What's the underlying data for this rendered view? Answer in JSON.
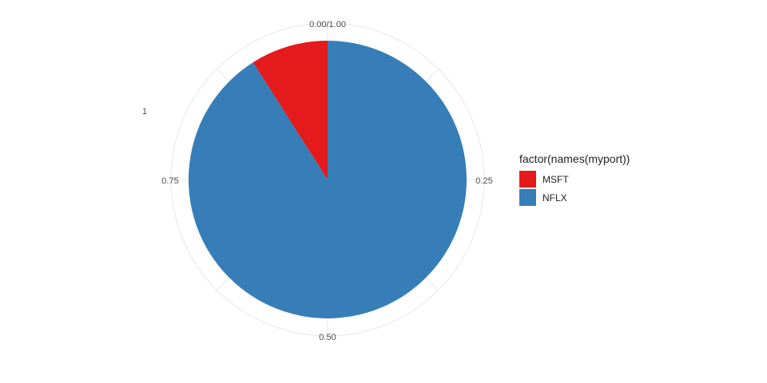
{
  "chart_data": {
    "type": "pie",
    "categories": [
      "MSFT",
      "NFLX"
    ],
    "values": [
      0.09,
      0.91
    ],
    "colors": [
      "#E41A1C",
      "#377EB8"
    ],
    "title": "",
    "legend": {
      "title": "factor(names(myport))",
      "position": "right"
    },
    "tick_labels": [
      "0.00/1.00",
      "0.25",
      "0.50",
      "0.75",
      "1"
    ],
    "grid": true
  }
}
